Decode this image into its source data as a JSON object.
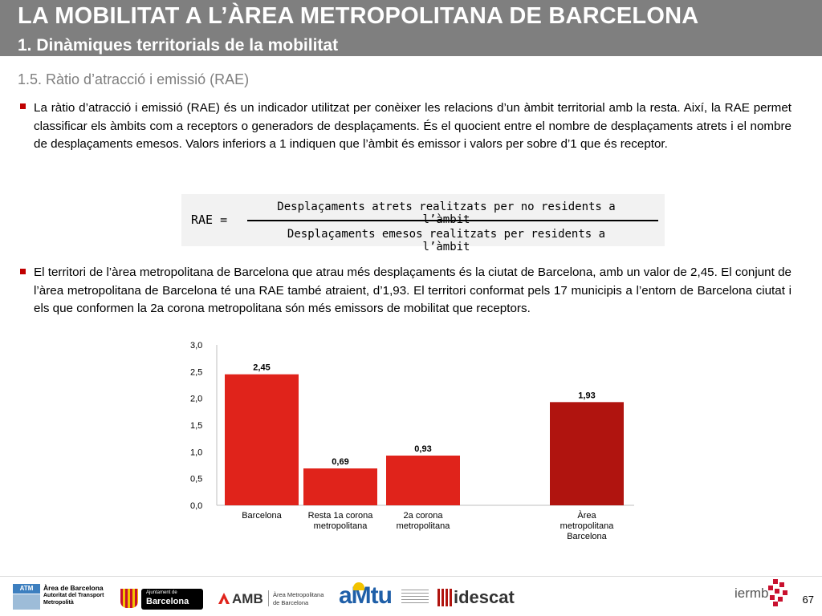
{
  "header": {
    "title": "LA MOBILITAT A L’ÀREA METROPOLITANA DE BARCELONA",
    "subtitle": "1. Dinàmiques territorials de la mobilitat"
  },
  "section": {
    "heading": "1.5. Ràtio d’atracció i emissió (RAE)"
  },
  "paragraphs": [
    "La ràtio d’atracció i emissió (RAE) és un indicador utilitzat per conèixer les relacions d’un àmbit territorial amb la resta. Així, la RAE permet classificar els àmbits com a receptors o generadors de desplaçaments. És el quocient entre el nombre de desplaçaments atrets i el nombre de desplaçaments emesos. Valors inferiors a 1 indiquen que l’àmbit és emissor i valors per sobre d’1 que és receptor.",
    "El territori de l’àrea metropolitana de Barcelona que atrau més desplaçaments és la ciutat de Barcelona, amb un valor de 2,45. El conjunt de l’àrea metropolitana de Barcelona té una RAE també atraient, d’1,93. El territori conformat pels 17 municipis a l’entorn de Barcelona ciutat i els que conformen la 2a corona metropolitana són més emissors de mobilitat que receptors."
  ],
  "formula": {
    "label": "RAE =",
    "numerator": "Desplaçaments atrets realitzats per no residents a l’àmbit",
    "denominator": "Desplaçaments emesos realitzats per residents a l’àmbit"
  },
  "chart_data": {
    "type": "bar",
    "categories": [
      [
        "Barcelona"
      ],
      [
        "Resta 1a  corona",
        "metropolitana"
      ],
      [
        "2a corona",
        "metropolitana"
      ],
      [
        "Àrea",
        "metropolitana",
        "Barcelona"
      ]
    ],
    "values": [
      2.45,
      0.69,
      0.93,
      1.93
    ],
    "value_labels": [
      "2,45",
      "0,69",
      "0,93",
      "1,93"
    ],
    "colors": [
      "#e0231b",
      "#e0231b",
      "#e0231b",
      "#b0140f"
    ],
    "y_ticks": [
      "0,0",
      "0,5",
      "1,0",
      "1,5",
      "2,0",
      "2,5",
      "3,0"
    ],
    "ylim": [
      0,
      3.0
    ],
    "grid": false,
    "title": "",
    "xlabel": "",
    "ylabel": ""
  },
  "footer": {
    "logos": {
      "atm_line1": "Àrea de Barcelona",
      "atm_line2": "Autoritat del Transport",
      "atm_line3": "Metropolità",
      "atm_badge": "ATM",
      "ajuntament_small": "Ajuntament de",
      "ajuntament_big": "Barcelona",
      "amb": "AMB",
      "amb_text1": "Àrea Metropolitana",
      "amb_text2": "de Barcelona",
      "amtu": "aMtu",
      "idescat": "idescat",
      "iermb": "iermb"
    },
    "page_number": "67"
  }
}
